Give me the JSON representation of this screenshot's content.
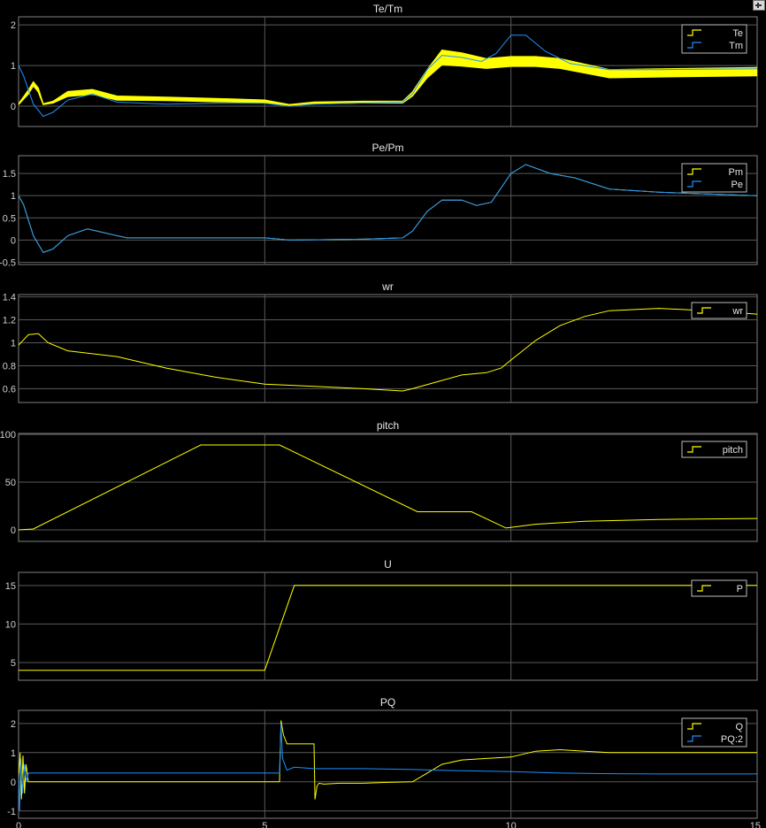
{
  "window": {
    "corner_button_icon": "expand-icon"
  },
  "x_axis": {
    "ticks": [
      0,
      5,
      10,
      15
    ],
    "range": [
      0,
      15
    ]
  },
  "chart_data": [
    {
      "type": "line",
      "title": "Te/Tm",
      "ylim": [
        -0.5,
        2.2
      ],
      "yticks": [
        0,
        1,
        2
      ],
      "grid": true,
      "legend": {
        "placement": "top-right",
        "entries": [
          {
            "name": "Te",
            "color": "#ffff00"
          },
          {
            "name": "Tm",
            "color": "#1e90ff"
          }
        ]
      },
      "series": [
        {
          "name": "Te",
          "color": "#ffff00",
          "band": true,
          "x": [
            0,
            0.2,
            0.3,
            0.4,
            0.5,
            0.7,
            1.0,
            1.5,
            2.0,
            3.0,
            4.0,
            5.0,
            5.5,
            6.0,
            7.0,
            7.8,
            8.0,
            8.3,
            8.6,
            9.0,
            9.5,
            10.0,
            10.5,
            11.0,
            12.0,
            13.0,
            15.0
          ],
          "y": [
            0.05,
            0.35,
            0.55,
            0.4,
            0.05,
            0.1,
            0.3,
            0.35,
            0.2,
            0.18,
            0.15,
            0.12,
            0.03,
            0.08,
            0.1,
            0.1,
            0.3,
            0.8,
            1.2,
            1.15,
            1.05,
            1.1,
            1.1,
            1.05,
            0.8,
            0.82,
            0.85
          ],
          "half_width": [
            0.01,
            0.05,
            0.05,
            0.05,
            0.01,
            0.02,
            0.06,
            0.06,
            0.05,
            0.04,
            0.04,
            0.03,
            0.01,
            0.02,
            0.02,
            0.02,
            0.05,
            0.1,
            0.18,
            0.16,
            0.12,
            0.12,
            0.12,
            0.12,
            0.1,
            0.1,
            0.1
          ]
        },
        {
          "name": "Tm",
          "color": "#1e90ff",
          "x": [
            0,
            0.1,
            0.3,
            0.5,
            0.7,
            1.0,
            1.5,
            2.0,
            3.0,
            4.0,
            5.0,
            5.5,
            6.0,
            7.0,
            7.8,
            8.0,
            8.3,
            8.6,
            9.0,
            9.4,
            9.7,
            10.0,
            10.3,
            10.7,
            11.2,
            12.0,
            13.0,
            15.0
          ],
          "y": [
            1.0,
            0.75,
            0.05,
            -0.25,
            -0.15,
            0.15,
            0.3,
            0.1,
            0.05,
            0.07,
            0.07,
            0.0,
            0.05,
            0.08,
            0.1,
            0.3,
            0.9,
            1.25,
            1.2,
            1.1,
            1.3,
            1.75,
            1.75,
            1.35,
            1.05,
            0.9,
            0.9,
            0.92
          ]
        }
      ]
    },
    {
      "type": "line",
      "title": "Pe/Pm",
      "ylim": [
        -0.55,
        1.9
      ],
      "yticks": [
        -0.5,
        0,
        0.5,
        1,
        1.5
      ],
      "grid": true,
      "legend": {
        "placement": "top-right",
        "entries": [
          {
            "name": "Pm",
            "color": "#ffff00"
          },
          {
            "name": "Pe",
            "color": "#1e90ff"
          }
        ]
      },
      "series": [
        {
          "name": "Pm",
          "color": "#ffff00",
          "x": [
            0,
            0.1,
            0.3,
            0.5,
            0.7,
            1.0,
            1.4,
            1.8,
            2.2,
            3.0,
            4.0,
            5.0,
            5.5,
            7.0,
            7.8,
            8.0,
            8.3,
            8.6,
            9.0,
            9.3,
            9.6,
            10.0,
            10.3,
            10.8,
            11.3,
            12.0,
            13.0,
            15.0
          ],
          "y": [
            1.0,
            0.8,
            0.1,
            -0.28,
            -0.2,
            0.1,
            0.25,
            0.15,
            0.05,
            0.05,
            0.05,
            0.05,
            0.0,
            0.02,
            0.05,
            0.2,
            0.65,
            0.9,
            0.9,
            0.78,
            0.85,
            1.5,
            1.7,
            1.5,
            1.4,
            1.15,
            1.08,
            1.0
          ]
        },
        {
          "name": "Pe",
          "color": "#1e90ff",
          "x": [
            0,
            0.1,
            0.3,
            0.5,
            0.7,
            1.0,
            1.4,
            1.8,
            2.2,
            3.0,
            4.0,
            5.0,
            5.5,
            7.0,
            7.8,
            8.0,
            8.3,
            8.6,
            9.0,
            9.3,
            9.6,
            10.0,
            10.3,
            10.8,
            11.3,
            12.0,
            13.0,
            15.0
          ],
          "y": [
            1.0,
            0.8,
            0.1,
            -0.28,
            -0.2,
            0.1,
            0.25,
            0.15,
            0.05,
            0.05,
            0.05,
            0.05,
            0.0,
            0.02,
            0.05,
            0.2,
            0.65,
            0.9,
            0.9,
            0.78,
            0.85,
            1.5,
            1.7,
            1.5,
            1.4,
            1.15,
            1.08,
            1.0
          ]
        }
      ]
    },
    {
      "type": "line",
      "title": "wr",
      "ylim": [
        0.48,
        1.42
      ],
      "yticks": [
        0.6,
        0.8,
        1,
        1.2,
        1.4
      ],
      "grid": true,
      "legend": {
        "placement": "top-right",
        "entries": [
          {
            "name": "wr",
            "color": "#ffff00"
          }
        ]
      },
      "series": [
        {
          "name": "wr",
          "color": "#ffff00",
          "x": [
            0,
            0.2,
            0.4,
            0.6,
            1.0,
            2.0,
            3.0,
            4.0,
            5.0,
            6.0,
            7.0,
            7.8,
            8.0,
            8.5,
            9.0,
            9.5,
            9.8,
            10.0,
            10.5,
            11.0,
            11.5,
            12.0,
            13.0,
            14.0,
            15.0
          ],
          "y": [
            0.98,
            1.07,
            1.08,
            1.0,
            0.93,
            0.88,
            0.78,
            0.7,
            0.64,
            0.62,
            0.6,
            0.58,
            0.6,
            0.66,
            0.72,
            0.74,
            0.78,
            0.85,
            1.02,
            1.15,
            1.23,
            1.28,
            1.3,
            1.28,
            1.25
          ]
        }
      ]
    },
    {
      "type": "line",
      "title": "pitch",
      "ylim": [
        -12,
        101
      ],
      "yticks": [
        0,
        50,
        100
      ],
      "grid": true,
      "legend": {
        "placement": "top-right",
        "entries": [
          {
            "name": "pitch",
            "color": "#ffff00"
          }
        ]
      },
      "series": [
        {
          "name": "pitch",
          "color": "#ffff00",
          "x": [
            0,
            0.3,
            3.7,
            5.3,
            8.1,
            9.2,
            9.9,
            10.5,
            11.5,
            13.0,
            15.0
          ],
          "y": [
            0,
            1,
            89,
            89,
            19,
            19,
            2,
            6,
            9,
            11,
            12
          ]
        }
      ]
    },
    {
      "type": "line",
      "title": "U",
      "ylim": [
        2.7,
        16.7
      ],
      "yticks": [
        5,
        10,
        15
      ],
      "grid": true,
      "legend": {
        "placement": "top-right",
        "entries": [
          {
            "name": "P",
            "color": "#ffff00"
          }
        ]
      },
      "series": [
        {
          "name": "P",
          "color": "#ffff00",
          "x": [
            0,
            5.0,
            5.6,
            15.0
          ],
          "y": [
            4,
            4,
            15,
            15
          ]
        }
      ]
    },
    {
      "type": "line",
      "title": "PQ",
      "ylim": [
        -1.25,
        2.45
      ],
      "yticks": [
        -1,
        0,
        1,
        2
      ],
      "grid": true,
      "legend": {
        "placement": "top-right",
        "entries": [
          {
            "name": "Q",
            "color": "#ffff00"
          },
          {
            "name": "PQ:2",
            "color": "#1e90ff"
          }
        ]
      },
      "series": [
        {
          "name": "Q",
          "color": "#ffff00",
          "x": [
            0,
            0.03,
            0.06,
            0.09,
            0.12,
            0.15,
            0.2,
            0.3,
            5.0,
            5.3,
            5.33,
            5.38,
            5.45,
            6.0,
            6.02,
            6.06,
            6.1,
            6.2,
            6.5,
            7.0,
            7.5,
            8.0,
            8.3,
            8.6,
            9.0,
            9.5,
            10.0,
            10.5,
            11.0,
            11.5,
            12.0,
            13.0,
            15.0
          ],
          "y": [
            0.0,
            1.0,
            -0.6,
            0.9,
            -0.4,
            0.6,
            0.0,
            0.0,
            0.0,
            0.0,
            2.1,
            1.6,
            1.3,
            1.3,
            -0.6,
            -0.15,
            -0.05,
            -0.08,
            -0.05,
            -0.05,
            -0.02,
            0.0,
            0.3,
            0.6,
            0.75,
            0.8,
            0.85,
            1.05,
            1.1,
            1.05,
            1.0,
            1.0,
            1.0
          ]
        },
        {
          "name": "PQ:2",
          "color": "#1e90ff",
          "x": [
            0,
            0.02,
            0.05,
            0.08,
            0.12,
            0.16,
            0.2,
            0.3,
            5.0,
            5.3,
            5.33,
            5.36,
            5.45,
            5.6,
            6.0,
            6.5,
            7.0,
            8.0,
            9.0,
            10.0,
            11.0,
            12.0,
            13.0,
            15.0
          ],
          "y": [
            0.3,
            -1.0,
            0.8,
            -0.4,
            0.6,
            0.0,
            0.3,
            0.3,
            0.3,
            0.3,
            2.0,
            0.8,
            0.4,
            0.5,
            0.45,
            0.45,
            0.45,
            0.42,
            0.38,
            0.35,
            0.3,
            0.28,
            0.27,
            0.27
          ]
        }
      ]
    }
  ]
}
